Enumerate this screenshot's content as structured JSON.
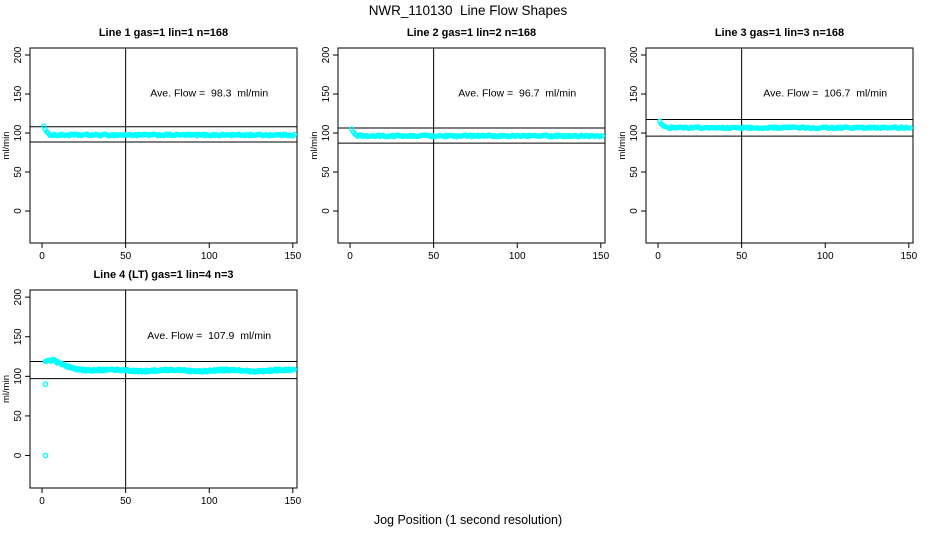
{
  "window": {
    "title": "NWR_110130  Line Flow Shapes",
    "xlabel": "Jog Position (1 second resolution)"
  },
  "chart_data": {
    "type": "scatter",
    "title": "NWR_110130  Line Flow Shapes",
    "xlabel": "Jog Position (1 second resolution)",
    "ylabel": "ml/min",
    "point_color": "#00FFFF",
    "line_color": "#000000",
    "background": "#FFFFFF",
    "grid": false,
    "legend": "none",
    "xlim": [
      -7.2,
      152.5
    ],
    "ylim": [
      -41,
      209
    ],
    "x_ticks": [
      0,
      50,
      100,
      150
    ],
    "y_ticks": [
      0,
      50,
      100,
      150,
      200
    ],
    "vline_x": 50,
    "annotation_pos": {
      "x": 100,
      "y": 152
    },
    "panels": [
      {
        "title": "Line 1 gas=1 lin=1 n=168",
        "annotation": "Ave. Flow =  98.3  ml/min",
        "ave_flow_ml_min": 98.3,
        "n": 168,
        "hlines": [
          108.1,
          88.5
        ],
        "series": {
          "name": "Line 1 flow",
          "x_start": 1,
          "x_end": 151,
          "points": 168,
          "start_value": 110,
          "plateau": 97.5,
          "decay_tau": 1.3,
          "hold_x": 0,
          "noise": 1.1,
          "wave_amp": 0,
          "wave_period": 30
        },
        "outliers": []
      },
      {
        "title": "Line 2 gas=1 lin=2 n=168",
        "annotation": "Ave. Flow =  96.7  ml/min",
        "ave_flow_ml_min": 96.7,
        "n": 168,
        "hlines": [
          106.4,
          87.0
        ],
        "series": {
          "name": "Line 2 flow",
          "x_start": 1,
          "x_end": 151,
          "points": 168,
          "start_value": 104,
          "plateau": 96.3,
          "decay_tau": 1.5,
          "hold_x": 0,
          "noise": 1.2,
          "wave_amp": 0,
          "wave_period": 30
        },
        "outliers": []
      },
      {
        "title": "Line 3 gas=1 lin=3 n=168",
        "annotation": "Ave. Flow =  106.7  ml/min",
        "ave_flow_ml_min": 106.7,
        "n": 168,
        "hlines": [
          117.4,
          96.0
        ],
        "series": {
          "name": "Line 3 flow",
          "x_start": 1,
          "x_end": 151,
          "points": 168,
          "start_value": 115.5,
          "plateau": 106.8,
          "decay_tau": 1.3,
          "hold_x": 0,
          "noise": 1.1,
          "wave_amp": 0,
          "wave_period": 30
        },
        "outliers": []
      },
      {
        "title": "Line 4 (LT) gas=1 lin=4 n=3",
        "annotation": "Ave. Flow =  107.9  ml/min",
        "ave_flow_ml_min": 107.9,
        "n": 3,
        "hlines": [
          118.7,
          97.1
        ],
        "series": {
          "name": "Line 4 flow",
          "x_start": 2,
          "x_end": 151,
          "points": 320,
          "start_value": 119.5,
          "plateau": 107.3,
          "decay_tau": 9,
          "hold_x": 5,
          "noise": 1.2,
          "wave_amp": 0.9,
          "wave_period": 34
        },
        "outliers": [
          [
            2,
            90
          ],
          [
            2,
            0
          ]
        ]
      }
    ]
  }
}
